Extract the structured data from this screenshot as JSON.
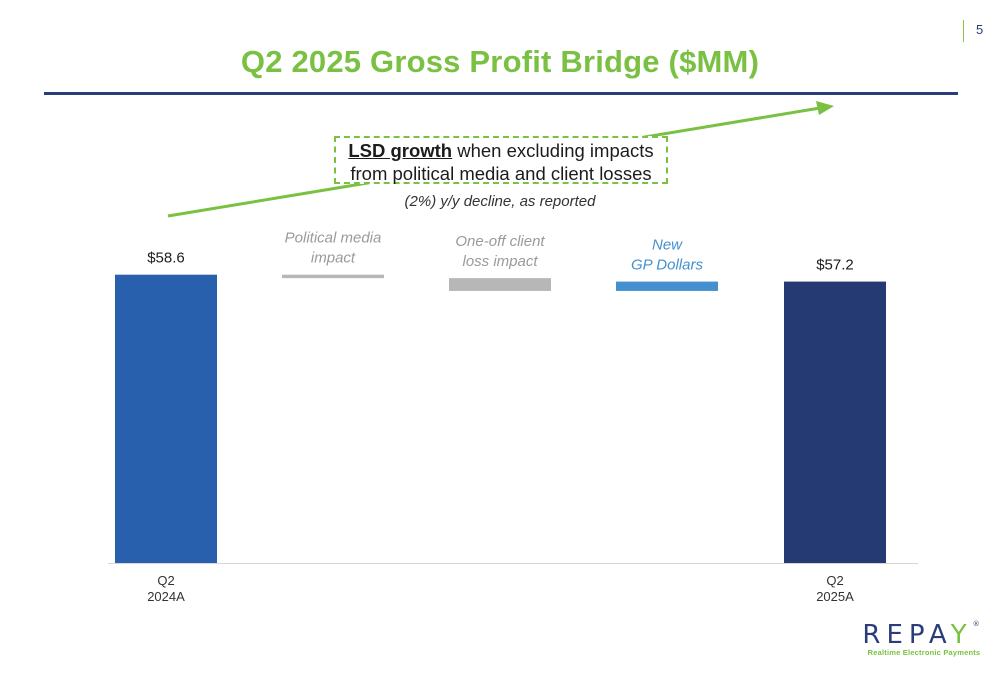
{
  "page_number": "5",
  "title": "Q2 2025 Gross Profit Bridge ($MM)",
  "callout": {
    "bold": "LSD growth",
    "line1_rest": " when excluding impacts",
    "line2": "from political media and client losses"
  },
  "subnote": "(2%) y/y decline, as reported",
  "logo": {
    "wordmark_left": "REPA",
    "wordmark_accent": "Y",
    "registered": "®",
    "tagline": "Realtime Electronic Payments"
  },
  "colors": {
    "title_green": "#7ac143",
    "navy": "#2a3d7a",
    "start_bar": "#2860ad",
    "end_bar": "#253a73",
    "negative_bar": "#b7b7b7",
    "positive_bar": "#4490cf",
    "arrow": "#7ac143"
  },
  "chart_data": {
    "type": "waterfall",
    "title": "Q2 2025 Gross Profit Bridge ($MM)",
    "unit": "$MM",
    "steps": [
      {
        "label_lines": [
          "Q2",
          "2024A"
        ],
        "kind": "total",
        "value": 58.6,
        "data_label": "$58.6",
        "color_key": "start_bar"
      },
      {
        "annotation_lines": [
          "Political media",
          "impact"
        ],
        "kind": "decrease",
        "value": -0.7,
        "color_key": "negative_bar"
      },
      {
        "annotation_lines": [
          "One-off client",
          "loss impact"
        ],
        "kind": "decrease",
        "value": -2.6,
        "color_key": "negative_bar"
      },
      {
        "annotation_lines": [
          "New",
          "GP Dollars"
        ],
        "kind": "increase",
        "value": 1.9,
        "color_key": "positive_bar"
      },
      {
        "label_lines": [
          "Q2",
          "2025A"
        ],
        "kind": "total",
        "value": 57.2,
        "data_label": "$57.2",
        "color_key": "end_bar"
      }
    ],
    "value_axis_visible": false,
    "grid": false
  }
}
